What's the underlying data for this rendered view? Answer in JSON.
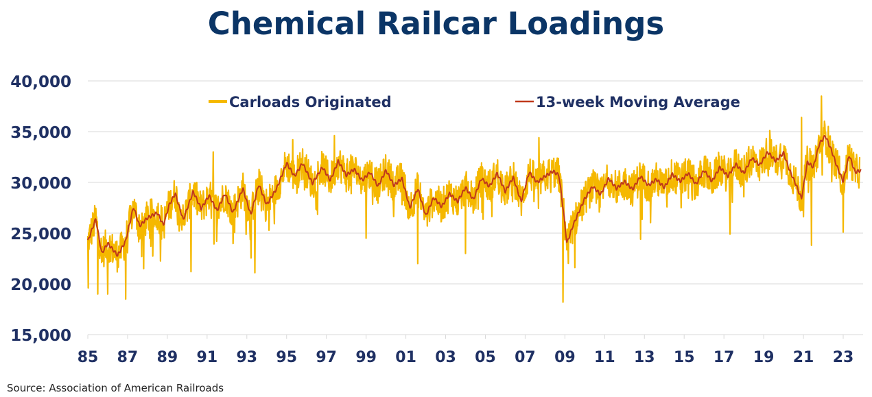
{
  "chart_data": {
    "type": "line",
    "title": "Chemical Railcar Loadings",
    "xlabel": "",
    "ylabel": "",
    "ylim": [
      15000,
      40000
    ],
    "xlim": [
      1985,
      2024.0
    ],
    "yticks": [
      "15,000",
      "20,000",
      "25,000",
      "30,000",
      "35,000",
      "40,000"
    ],
    "ytick_values": [
      15000,
      20000,
      25000,
      30000,
      35000,
      40000
    ],
    "xticks": [
      "85",
      "87",
      "89",
      "91",
      "93",
      "95",
      "97",
      "99",
      "01",
      "03",
      "05",
      "07",
      "09",
      "11",
      "13",
      "15",
      "17",
      "19",
      "21",
      "23"
    ],
    "xtick_values": [
      1985,
      1987,
      1989,
      1991,
      1993,
      1995,
      1997,
      1999,
      2001,
      2003,
      2005,
      2007,
      2009,
      2011,
      2013,
      2015,
      2017,
      2019,
      2021,
      2023
    ],
    "grid": "horizontal",
    "legend": "top",
    "series": [
      {
        "name": "Carloads Originated",
        "color": "#f5b800",
        "weekly": true,
        "noise_amplitude": 1700,
        "spikes": [
          [
            1985.02,
            19600
          ],
          [
            1985.5,
            19000
          ],
          [
            1986.0,
            19000
          ],
          [
            1986.9,
            18500
          ],
          [
            1987.8,
            21500
          ],
          [
            1990.2,
            21200
          ],
          [
            1993.4,
            21100
          ],
          [
            1999.0,
            24500
          ],
          [
            2001.6,
            22000
          ],
          [
            2004.0,
            23000
          ],
          [
            2008.9,
            18200
          ],
          [
            2009.5,
            21600
          ],
          [
            2012.8,
            24400
          ],
          [
            2017.3,
            24900
          ],
          [
            2021.4,
            23800
          ],
          [
            2023.0,
            25100
          ]
        ],
        "peaks": [
          [
            1991.3,
            33000
          ],
          [
            1995.3,
            34200
          ],
          [
            1997.4,
            34600
          ],
          [
            2007.7,
            34400
          ],
          [
            2019.3,
            35100
          ],
          [
            2020.9,
            36400
          ],
          [
            2021.9,
            38500
          ]
        ]
      },
      {
        "name": "13-week Moving Average",
        "color": "#c0391b",
        "x": [
          1985.0,
          1985.4,
          1985.7,
          1986.0,
          1986.5,
          1986.9,
          1987.3,
          1987.6,
          1988.0,
          1988.5,
          1988.8,
          1989.1,
          1989.4,
          1989.8,
          1990.3,
          1990.7,
          1991.1,
          1991.5,
          1991.9,
          1992.3,
          1992.8,
          1993.2,
          1993.6,
          1994.0,
          1994.5,
          1995.0,
          1995.4,
          1995.8,
          1996.3,
          1996.8,
          1997.2,
          1997.6,
          1998.0,
          1998.4,
          1998.8,
          1999.2,
          1999.6,
          2000.0,
          2000.4,
          2000.8,
          2001.2,
          2001.6,
          2002.0,
          2002.4,
          2002.8,
          2003.2,
          2003.6,
          2004.0,
          2004.4,
          2004.8,
          2005.2,
          2005.6,
          2006.0,
          2006.4,
          2006.8,
          2007.2,
          2007.6,
          2008.0,
          2008.4,
          2008.7,
          2008.9,
          2009.1,
          2009.4,
          2009.7,
          2010.0,
          2010.4,
          2010.8,
          2011.2,
          2011.6,
          2012.0,
          2012.4,
          2012.8,
          2013.2,
          2013.6,
          2014.0,
          2014.4,
          2014.8,
          2015.2,
          2015.6,
          2016.0,
          2016.4,
          2016.8,
          2017.2,
          2017.6,
          2018.0,
          2018.4,
          2018.8,
          2019.2,
          2019.6,
          2020.0,
          2020.3,
          2020.6,
          2020.9,
          2021.2,
          2021.5,
          2021.8,
          2022.1,
          2022.4,
          2022.7,
          2023.0,
          2023.3,
          2023.6,
          2023.9
        ],
        "y": [
          24200,
          26400,
          23000,
          24000,
          22800,
          24200,
          27600,
          25700,
          26500,
          27000,
          25800,
          27800,
          28900,
          26300,
          29100,
          27400,
          28700,
          27200,
          28900,
          27000,
          29400,
          26800,
          29800,
          27800,
          29400,
          31900,
          30600,
          31900,
          29900,
          31500,
          30200,
          32100,
          30700,
          31300,
          30200,
          31000,
          29600,
          31200,
          29700,
          30400,
          27500,
          29400,
          26700,
          28500,
          27600,
          28900,
          28100,
          29500,
          28300,
          30400,
          29600,
          30900,
          29100,
          30500,
          28100,
          31000,
          30000,
          30600,
          31100,
          30700,
          27600,
          24000,
          25700,
          27100,
          28400,
          29600,
          28800,
          30400,
          29400,
          30100,
          29300,
          30600,
          29700,
          30300,
          29500,
          30800,
          30100,
          30900,
          29800,
          31200,
          30100,
          31500,
          30600,
          31800,
          30900,
          32400,
          31700,
          33000,
          32100,
          32900,
          31200,
          29900,
          28400,
          32000,
          31500,
          33800,
          34600,
          33200,
          31500,
          30100,
          32700,
          31000,
          31200
        ]
      }
    ]
  },
  "source": "Source:  Association of American Railroads"
}
